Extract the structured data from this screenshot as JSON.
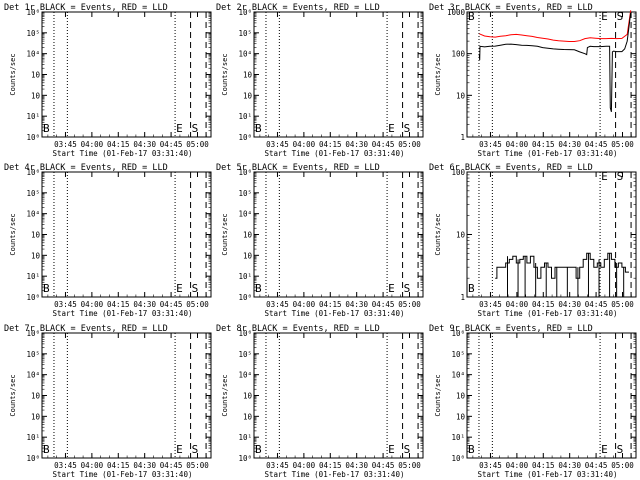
{
  "panels": [
    {
      "title": "Det 1r BLACK = Events, RED = LLD",
      "scale": "small",
      "ytick_labels": [
        "10⁶",
        "10⁵",
        "10⁴",
        "10⁳",
        "10⁲",
        "10¹",
        "10⁰"
      ],
      "xtick_labels": [
        "03:45",
        "04:00",
        "04:15",
        "04:30",
        "04:45",
        "05:00"
      ],
      "ylabel": "Counts/sec",
      "xlabel": "Start Time (01-Feb-17 03:31:40)",
      "markers": {
        "b": "B",
        "e": "E",
        "s": "S"
      },
      "series": []
    },
    {
      "title": "Det 2r BLACK = Events, RED = LLD",
      "scale": "small",
      "ytick_labels": [
        "10⁶",
        "10⁵",
        "10⁴",
        "10⁳",
        "10⁲",
        "10¹",
        "10⁰"
      ],
      "xtick_labels": [
        "03:45",
        "04:00",
        "04:15",
        "04:30",
        "04:45",
        "05:00"
      ],
      "ylabel": "Counts/sec",
      "xlabel": "Start Time (01-Feb-17 03:31:40)",
      "markers": {
        "b": "B",
        "e": "E",
        "s": "S"
      },
      "series": []
    },
    {
      "title": "Det 3r BLACK = Events, RED = LLD",
      "scale": "big",
      "ytick_labels": [
        "1000",
        "100",
        "10",
        "1"
      ],
      "xtick_labels": [
        "03:45",
        "04:00",
        "04:15",
        "04:30",
        "04:45",
        "05:00"
      ],
      "ylabel": "Counts/sec",
      "xlabel": "Start Time (01-Feb-17 03:31:40)",
      "markers": {
        "b": "B",
        "e": "E",
        "s": "S"
      },
      "series": [
        {
          "name": "LLD",
          "color": "#ff0000",
          "style": "line",
          "points": [
            [
              3.5,
              300
            ],
            [
              5,
              265
            ],
            [
              6.5,
              255
            ],
            [
              8,
              250
            ],
            [
              9.5,
              262
            ],
            [
              11,
              270
            ],
            [
              12.5,
              285
            ],
            [
              14,
              290
            ],
            [
              15.5,
              280
            ],
            [
              17,
              270
            ],
            [
              18.5,
              260
            ],
            [
              20,
              245
            ],
            [
              21.5,
              235
            ],
            [
              23,
              225
            ],
            [
              24.5,
              212
            ],
            [
              26,
              205
            ],
            [
              27.5,
              200
            ],
            [
              29,
              196
            ],
            [
              30.5,
              196
            ],
            [
              32,
              205
            ],
            [
              33.5,
              230
            ],
            [
              35,
              242
            ],
            [
              36.5,
              235
            ],
            [
              38,
              230
            ],
            [
              39.5,
              230
            ],
            [
              41,
              232
            ],
            [
              42.5,
              230
            ],
            [
              44,
              232
            ],
            [
              45.5,
              290
            ],
            [
              46.5,
              1100
            ]
          ]
        },
        {
          "name": "Events",
          "color": "#000000",
          "style": "line",
          "points": [
            [
              3.5,
              95
            ],
            [
              3.6,
              70
            ],
            [
              3.7,
              150
            ],
            [
              5,
              145
            ],
            [
              6.5,
              150
            ],
            [
              8,
              152
            ],
            [
              9.5,
              160
            ],
            [
              11,
              168
            ],
            [
              12.5,
              170
            ],
            [
              14,
              165
            ],
            [
              15.5,
              160
            ],
            [
              17,
              158
            ],
            [
              18.5,
              155
            ],
            [
              20,
              150
            ],
            [
              21.5,
              140
            ],
            [
              23,
              135
            ],
            [
              24.5,
              130
            ],
            [
              26,
              128
            ],
            [
              27.5,
              126
            ],
            [
              29,
              125
            ],
            [
              30.5,
              124
            ],
            [
              32,
              110
            ],
            [
              33.5,
              100
            ],
            [
              34,
              95
            ],
            [
              34.2,
              140
            ],
            [
              35,
              150
            ],
            [
              36,
              148
            ],
            [
              38,
              148
            ],
            [
              39.5,
              150
            ],
            [
              40.5,
              150
            ],
            [
              40.7,
              5
            ],
            [
              41,
              4
            ],
            [
              41.3,
              110
            ],
            [
              41.6,
              115
            ],
            [
              42.5,
              112
            ],
            [
              44,
              112
            ],
            [
              44.8,
              130
            ],
            [
              45.5,
              200
            ],
            [
              46.5,
              960
            ]
          ]
        }
      ]
    },
    {
      "title": "Det 4r BLACK = Events, RED = LLD",
      "scale": "small",
      "ytick_labels": [
        "10⁶",
        "10⁵",
        "10⁴",
        "10⁳",
        "10⁲",
        "10¹",
        "10⁰"
      ],
      "xtick_labels": [
        "03:45",
        "04:00",
        "04:15",
        "04:30",
        "04:45",
        "05:00"
      ],
      "ylabel": "Counts/sec",
      "xlabel": "Start Time (01-Feb-17 03:31:40)",
      "markers": {
        "b": "B",
        "e": "E",
        "s": "S"
      },
      "series": []
    },
    {
      "title": "Det 5r BLACK = Events, RED = LLD",
      "scale": "small",
      "ytick_labels": [
        "10⁶",
        "10⁵",
        "10⁴",
        "10⁳",
        "10⁲",
        "10¹",
        "10⁰"
      ],
      "xtick_labels": [
        "03:45",
        "04:00",
        "04:15",
        "04:30",
        "04:45",
        "05:00"
      ],
      "ylabel": "Counts/sec",
      "xlabel": "Start Time (01-Feb-17 03:31:40)",
      "markers": {
        "b": "B",
        "e": "E",
        "s": "S"
      },
      "series": []
    },
    {
      "title": "Det 6r BLACK = Events, RED = LLD",
      "scale": "big",
      "ytick_labels": [
        "100",
        "10",
        "1"
      ],
      "xtick_labels": [
        "03:45",
        "04:00",
        "04:15",
        "04:30",
        "04:45",
        "05:00"
      ],
      "ylabel": "Counts/sec",
      "xlabel": "Start Time (01-Feb-17 03:31:40)",
      "markers": {
        "b": "B",
        "e": "E",
        "s": "S"
      },
      "series": [
        {
          "name": "Events",
          "color": "#000000",
          "style": "step",
          "points": [
            [
              8,
              2
            ],
            [
              8.5,
              3
            ],
            [
              10,
              3
            ],
            [
              11,
              3.5
            ],
            [
              12,
              4
            ],
            [
              13,
              4.5
            ],
            [
              14,
              3.5
            ],
            [
              15,
              4
            ],
            [
              16,
              4.5
            ],
            [
              17,
              3.5
            ],
            [
              18,
              4.5
            ],
            [
              19,
              3
            ],
            [
              20,
              2
            ],
            [
              21,
              3
            ],
            [
              22,
              3.5
            ],
            [
              23,
              3
            ],
            [
              24,
              2
            ],
            [
              25,
              3
            ],
            [
              26,
              3
            ],
            [
              27,
              3
            ],
            [
              28,
              3
            ],
            [
              29,
              3
            ],
            [
              30,
              3
            ],
            [
              31,
              2
            ],
            [
              32,
              3
            ],
            [
              33,
              4
            ],
            [
              34,
              5
            ],
            [
              35,
              4
            ],
            [
              36,
              3
            ],
            [
              37,
              3.5
            ],
            [
              38,
              3
            ],
            [
              39,
              4
            ],
            [
              40,
              5
            ],
            [
              41,
              4
            ],
            [
              42,
              3
            ],
            [
              43,
              3.5
            ],
            [
              44,
              3
            ],
            [
              45,
              2.5
            ],
            [
              46,
              2.5
            ]
          ]
        },
        {
          "name": "Events-spikes",
          "color": "#000000",
          "style": "spikes",
          "points": [
            [
              11.5,
              1,
              4.5
            ],
            [
              14.5,
              1,
              4
            ],
            [
              16.5,
              1,
              4.5
            ],
            [
              19.5,
              1,
              3.5
            ],
            [
              22.5,
              1,
              3.5
            ],
            [
              25.5,
              1,
              3
            ],
            [
              28.5,
              1,
              3
            ],
            [
              31.5,
              1,
              3
            ],
            [
              34.5,
              1,
              5
            ],
            [
              37.5,
              1,
              4
            ],
            [
              40.5,
              1,
              5
            ],
            [
              42.5,
              1,
              3.5
            ],
            [
              44.5,
              1,
              3
            ]
          ]
        }
      ]
    },
    {
      "title": "Det 7r BLACK = Events, RED = LLD",
      "scale": "small",
      "ytick_labels": [
        "10⁶",
        "10⁵",
        "10⁴",
        "10⁳",
        "10⁲",
        "10¹",
        "10⁰"
      ],
      "xtick_labels": [
        "03:45",
        "04:00",
        "04:15",
        "04:30",
        "04:45",
        "05:00"
      ],
      "ylabel": "Counts/sec",
      "xlabel": "Start Time (01-Feb-17 03:31:40)",
      "markers": {
        "b": "B",
        "e": "E",
        "s": "S"
      },
      "series": []
    },
    {
      "title": "Det 8r BLACK = Events, RED = LLD",
      "scale": "small",
      "ytick_labels": [
        "10⁶",
        "10⁵",
        "10⁴",
        "10⁳",
        "10⁲",
        "10¹",
        "10⁰"
      ],
      "xtick_labels": [
        "03:45",
        "04:00",
        "04:15",
        "04:30",
        "04:45",
        "05:00"
      ],
      "ylabel": "Counts/sec",
      "xlabel": "Start Time (01-Feb-17 03:31:40)",
      "markers": {
        "b": "B",
        "e": "E",
        "s": "S"
      },
      "series": []
    },
    {
      "title": "Det 9r BLACK = Events, RED = LLD",
      "scale": "small",
      "ytick_labels": [
        "10⁶",
        "10⁵",
        "10⁴",
        "10⁳",
        "10⁲",
        "10¹",
        "10⁰"
      ],
      "xtick_labels": [
        "03:45",
        "04:00",
        "04:15",
        "04:30",
        "04:45",
        "05:00"
      ],
      "ylabel": "Counts/sec",
      "xlabel": "Start Time (01-Feb-17 03:31:40)",
      "markers": {
        "b": "B",
        "e": "E",
        "s": "S"
      },
      "series": []
    }
  ],
  "chart_data": [
    {
      "type": "line",
      "title": "Det 1r BLACK = Events, RED = LLD",
      "xlabel": "Start Time (01-Feb-17 03:31:40)",
      "ylabel": "Counts/sec",
      "yscale": "log",
      "ylim": [
        1,
        1000000
      ],
      "xlim_minutes": [
        0,
        48
      ],
      "series": []
    },
    {
      "type": "line",
      "title": "Det 2r BLACK = Events, RED = LLD",
      "xlabel": "Start Time (01-Feb-17 03:31:40)",
      "ylabel": "Counts/sec",
      "yscale": "log",
      "ylim": [
        1,
        1000000
      ],
      "xlim_minutes": [
        0,
        48
      ],
      "series": []
    },
    {
      "type": "line",
      "title": "Det 3r BLACK = Events, RED = LLD",
      "xlabel": "Start Time (01-Feb-17 03:31:40)",
      "ylabel": "Counts/sec",
      "yscale": "log",
      "ylim": [
        1,
        1000
      ],
      "xlim_minutes": [
        0,
        48
      ],
      "series": [
        {
          "name": "LLD",
          "color": "red",
          "approx_range": [
            196,
            1100
          ]
        },
        {
          "name": "Events",
          "color": "black",
          "approx_range": [
            4,
            960
          ]
        }
      ]
    },
    {
      "type": "line",
      "title": "Det 4r BLACK = Events, RED = LLD",
      "xlabel": "Start Time (01-Feb-17 03:31:40)",
      "ylabel": "Counts/sec",
      "yscale": "log",
      "ylim": [
        1,
        1000000
      ],
      "xlim_minutes": [
        0,
        48
      ],
      "series": []
    },
    {
      "type": "line",
      "title": "Det 5r BLACK = Events, RED = LLD",
      "xlabel": "Start Time (01-Feb-17 03:31:40)",
      "ylabel": "Counts/sec",
      "yscale": "log",
      "ylim": [
        1,
        1000000
      ],
      "xlim_minutes": [
        0,
        48
      ],
      "series": []
    },
    {
      "type": "line",
      "title": "Det 6r BLACK = Events, RED = LLD",
      "xlabel": "Start Time (01-Feb-17 03:31:40)",
      "ylabel": "Counts/sec",
      "yscale": "log",
      "ylim": [
        1,
        100
      ],
      "xlim_minutes": [
        0,
        48
      ],
      "series": [
        {
          "name": "Events",
          "color": "black",
          "approx_range": [
            1,
            5
          ]
        }
      ]
    },
    {
      "type": "line",
      "title": "Det 7r BLACK = Events, RED = LLD",
      "xlabel": "Start Time (01-Feb-17 03:31:40)",
      "ylabel": "Counts/sec",
      "yscale": "log",
      "ylim": [
        1,
        1000000
      ],
      "xlim_minutes": [
        0,
        48
      ],
      "series": []
    },
    {
      "type": "line",
      "title": "Det 8r BLACK = Events, RED = LLD",
      "xlabel": "Start Time (01-Feb-17 03:31:40)",
      "ylabel": "Counts/sec",
      "yscale": "log",
      "ylim": [
        1,
        1000000
      ],
      "xlim_minutes": [
        0,
        48
      ],
      "series": []
    },
    {
      "type": "line",
      "title": "Det 9r BLACK = Events, RED = LLD",
      "xlabel": "Start Time (01-Feb-17 03:31:40)",
      "ylabel": "Counts/sec",
      "yscale": "log",
      "ylim": [
        1,
        1000000
      ],
      "xlim_minutes": [
        0,
        48
      ],
      "series": []
    }
  ]
}
